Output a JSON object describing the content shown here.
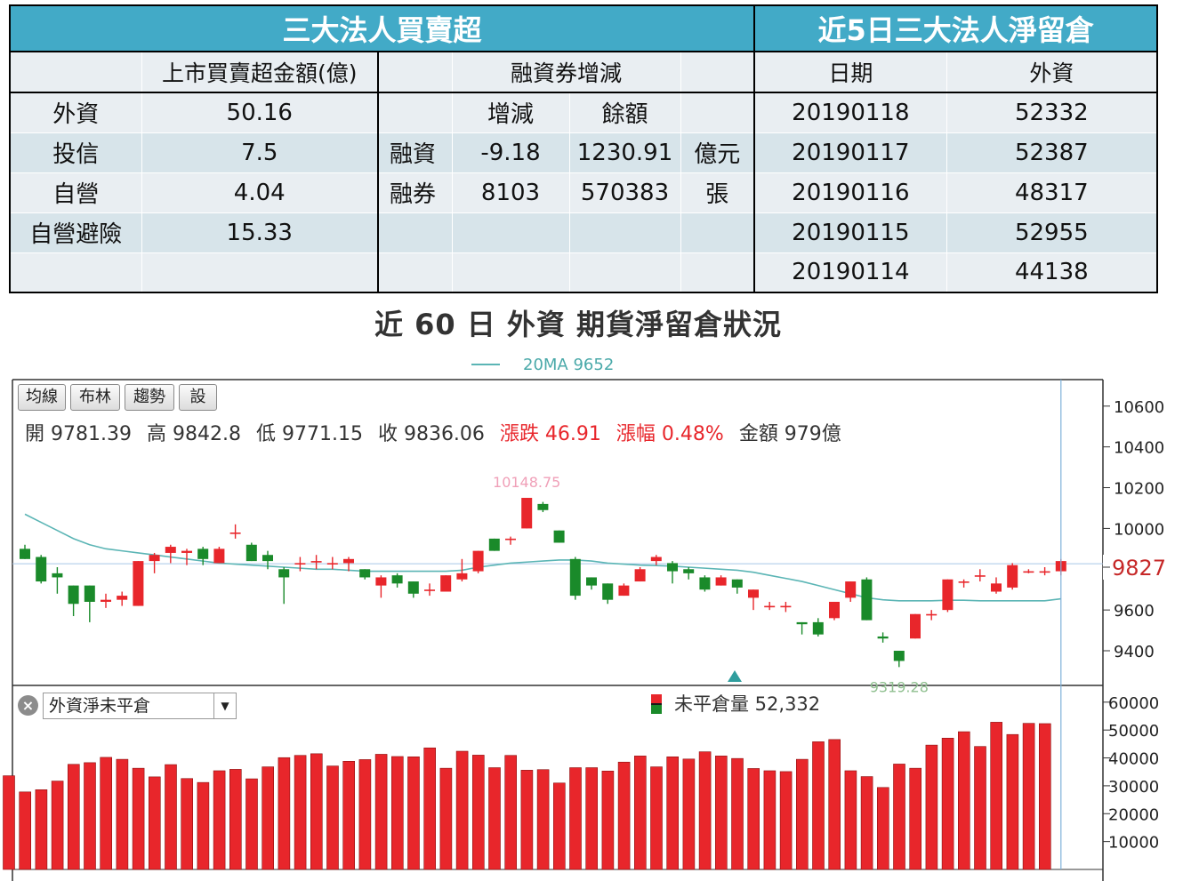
{
  "summary": {
    "left_title": "三大法人買賣超",
    "right_title": "近5日三大法人淨留倉",
    "col_amount": "上市買賣超金額(億)",
    "col_margin": "融資券增減",
    "col_date": "日期",
    "col_foreign": "外資",
    "sub_change": "增減",
    "sub_balance": "餘額",
    "institutions": [
      {
        "name": "外資",
        "amount": "50.16"
      },
      {
        "name": "投信",
        "amount": "7.5"
      },
      {
        "name": "自營",
        "amount": "4.04"
      },
      {
        "name": "自營避險",
        "amount": "15.33"
      }
    ],
    "margin_rows": [
      {
        "name": "融資",
        "change": "-9.18",
        "balance": "1230.91",
        "unit": "億元"
      },
      {
        "name": "融券",
        "change": "8103",
        "balance": "570383",
        "unit": "張"
      }
    ],
    "net_positions": [
      {
        "date": "20190118",
        "foreign": "52332"
      },
      {
        "date": "20190117",
        "foreign": "52387"
      },
      {
        "date": "20190116",
        "foreign": "48317"
      },
      {
        "date": "20190115",
        "foreign": "52955"
      },
      {
        "date": "20190114",
        "foreign": "44138"
      }
    ]
  },
  "chart_title": "近 60 日 外資 期貨淨留倉狀況",
  "toolbar": {
    "btn_ma": "均線",
    "btn_bollinger": "布林",
    "btn_trend": "趨勢",
    "btn_settings": "設"
  },
  "ohlc": {
    "open": "開 9781.39",
    "high": "高 9842.8",
    "low": "低 9771.15",
    "close": "收 9836.06",
    "change": "漲跌 46.91",
    "change_pct": "漲幅 0.48%",
    "turnover": "金額 979億"
  },
  "indicator": {
    "selected": "外資淨未平倉",
    "legend_label": "未平倉量 52,332"
  },
  "colors": {
    "up": "#e8262b",
    "down": "#1a8a2a",
    "ma": "#5bb5b5",
    "cursor": "#7fb0d8",
    "header_bg": "#42aac7"
  },
  "chart_data": {
    "type": "candlestick",
    "ma_legend": "20MA 9652",
    "price_ylim": [
      9230,
      10730
    ],
    "price_ticks": [
      "10600",
      "10400",
      "10200",
      "10000",
      "9800",
      "9600",
      "9400"
    ],
    "current_price": "9827",
    "max_label": "10148.75",
    "min_label": "9319.28",
    "candles": [
      [
        9900,
        9850,
        9850,
        9920
      ],
      [
        9860,
        9740,
        9730,
        9870
      ],
      [
        9780,
        9760,
        9680,
        9810
      ],
      [
        9720,
        9630,
        9570,
        9720
      ],
      [
        9720,
        9640,
        9540,
        9720
      ],
      [
        9640,
        9650,
        9610,
        9680
      ],
      [
        9650,
        9670,
        9620,
        9690
      ],
      [
        9620,
        9840,
        9620,
        9840
      ],
      [
        9840,
        9870,
        9780,
        9880
      ],
      [
        9880,
        9910,
        9830,
        9920
      ],
      [
        9880,
        9890,
        9820,
        9900
      ],
      [
        9900,
        9850,
        9820,
        9910
      ],
      [
        9830,
        9900,
        9830,
        9910
      ],
      [
        9980,
        9980,
        9950,
        10020
      ],
      [
        9920,
        9840,
        9840,
        9930
      ],
      [
        9870,
        9840,
        9800,
        9890
      ],
      [
        9800,
        9760,
        9630,
        9810
      ],
      [
        9830,
        9830,
        9790,
        9860
      ],
      [
        9840,
        9840,
        9800,
        9870
      ],
      [
        9830,
        9830,
        9800,
        9860
      ],
      [
        9830,
        9850,
        9790,
        9860
      ],
      [
        9800,
        9760,
        9750,
        9800
      ],
      [
        9720,
        9760,
        9660,
        9770
      ],
      [
        9770,
        9730,
        9710,
        9780
      ],
      [
        9740,
        9680,
        9660,
        9740
      ],
      [
        9700,
        9700,
        9670,
        9730
      ],
      [
        9690,
        9770,
        9690,
        9770
      ],
      [
        9750,
        9780,
        9740,
        9850
      ],
      [
        9790,
        9890,
        9780,
        9890
      ],
      [
        9950,
        9890,
        9890,
        9950
      ],
      [
        9950,
        9950,
        9920,
        9960
      ],
      [
        10000,
        10150,
        10000,
        10150
      ],
      [
        10120,
        10090,
        10080,
        10130
      ],
      [
        9990,
        9930,
        9930,
        9990
      ],
      [
        9850,
        9670,
        9650,
        9860
      ],
      [
        9760,
        9720,
        9700,
        9760
      ],
      [
        9730,
        9650,
        9630,
        9730
      ],
      [
        9670,
        9720,
        9670,
        9730
      ],
      [
        9740,
        9800,
        9740,
        9810
      ],
      [
        9840,
        9860,
        9820,
        9870
      ],
      [
        9830,
        9790,
        9730,
        9840
      ],
      [
        9800,
        9780,
        9750,
        9810
      ],
      [
        9760,
        9700,
        9690,
        9770
      ],
      [
        9720,
        9760,
        9720,
        9770
      ],
      [
        9750,
        9710,
        9680,
        9750
      ],
      [
        9660,
        9700,
        9600,
        9700
      ],
      [
        9620,
        9620,
        9600,
        9640
      ],
      [
        9620,
        9620,
        9590,
        9640
      ],
      [
        9540,
        9530,
        9480,
        9540
      ],
      [
        9540,
        9480,
        9470,
        9560
      ],
      [
        9560,
        9640,
        9550,
        9640
      ],
      [
        9660,
        9740,
        9640,
        9740
      ],
      [
        9750,
        9550,
        9550,
        9760
      ],
      [
        9470,
        9460,
        9440,
        9490
      ],
      [
        9400,
        9350,
        9320,
        9400
      ],
      [
        9460,
        9580,
        9460,
        9580
      ],
      [
        9580,
        9580,
        9550,
        9600
      ],
      [
        9600,
        9750,
        9590,
        9750
      ],
      [
        9740,
        9740,
        9710,
        9750
      ],
      [
        9770,
        9770,
        9740,
        9800
      ],
      [
        9690,
        9730,
        9680,
        9760
      ],
      [
        9710,
        9820,
        9700,
        9830
      ],
      [
        9790,
        9790,
        9780,
        9800
      ],
      [
        9790,
        9790,
        9770,
        9810
      ],
      [
        9790,
        9840,
        9770,
        9850
      ]
    ],
    "ma20": [
      10070,
      10030,
      9990,
      9950,
      9920,
      9900,
      9890,
      9880,
      9870,
      9860,
      9850,
      9840,
      9830,
      9825,
      9820,
      9815,
      9810,
      9805,
      9800,
      9800,
      9795,
      9790,
      9790,
      9790,
      9790,
      9790,
      9790,
      9795,
      9810,
      9820,
      9830,
      9835,
      9840,
      9845,
      9845,
      9840,
      9830,
      9825,
      9820,
      9818,
      9815,
      9810,
      9805,
      9800,
      9795,
      9785,
      9770,
      9755,
      9740,
      9720,
      9700,
      9680,
      9660,
      9650,
      9645,
      9645,
      9645,
      9648,
      9648,
      9645,
      9645,
      9645,
      9645,
      9645,
      9655
    ],
    "oi_ylim": [
      0,
      66000
    ],
    "oi_ticks": [
      "60000",
      "50000",
      "40000",
      "30000",
      "20000",
      "10000"
    ],
    "open_interest": [
      33600,
      27800,
      28600,
      31700,
      37700,
      38300,
      40200,
      39500,
      36300,
      33200,
      37600,
      32600,
      31200,
      35400,
      35900,
      32500,
      36800,
      40100,
      40900,
      41500,
      37100,
      38800,
      39400,
      41300,
      40500,
      40400,
      43600,
      36300,
      42400,
      41000,
      36500,
      40900,
      35600,
      35800,
      31000,
      36500,
      36500,
      35300,
      38500,
      40700,
      36800,
      40400,
      39600,
      42200,
      40700,
      39800,
      36200,
      35400,
      35100,
      39500,
      45800,
      46600,
      35400,
      33300,
      29400,
      37800,
      36300,
      44600,
      47100,
      49400,
      44100,
      52800,
      48400,
      52400,
      52300
    ]
  }
}
